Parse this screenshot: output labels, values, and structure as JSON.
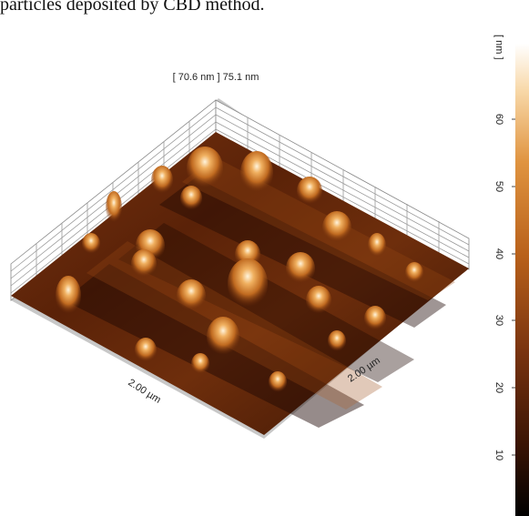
{
  "caption_fragment": "particles deposited by CBD method.",
  "figure": {
    "height_range_label": "[ 70.6 nm ] 75.1 nm",
    "x_axis_label": "2.00 µm",
    "y_axis_label": "2.00 µm",
    "colorbar": {
      "unit_label": "[ nm ]",
      "ticks": [
        "10",
        "20",
        "30",
        "40",
        "50",
        "60"
      ],
      "tick_values": [
        10,
        20,
        30,
        40,
        50,
        60
      ],
      "range": [
        0,
        70.6
      ],
      "colormap": [
        "#000000",
        "#4a1a05",
        "#8c3a0c",
        "#c86414",
        "#e8a050",
        "#fde9cc",
        "#ffffff"
      ]
    }
  }
}
